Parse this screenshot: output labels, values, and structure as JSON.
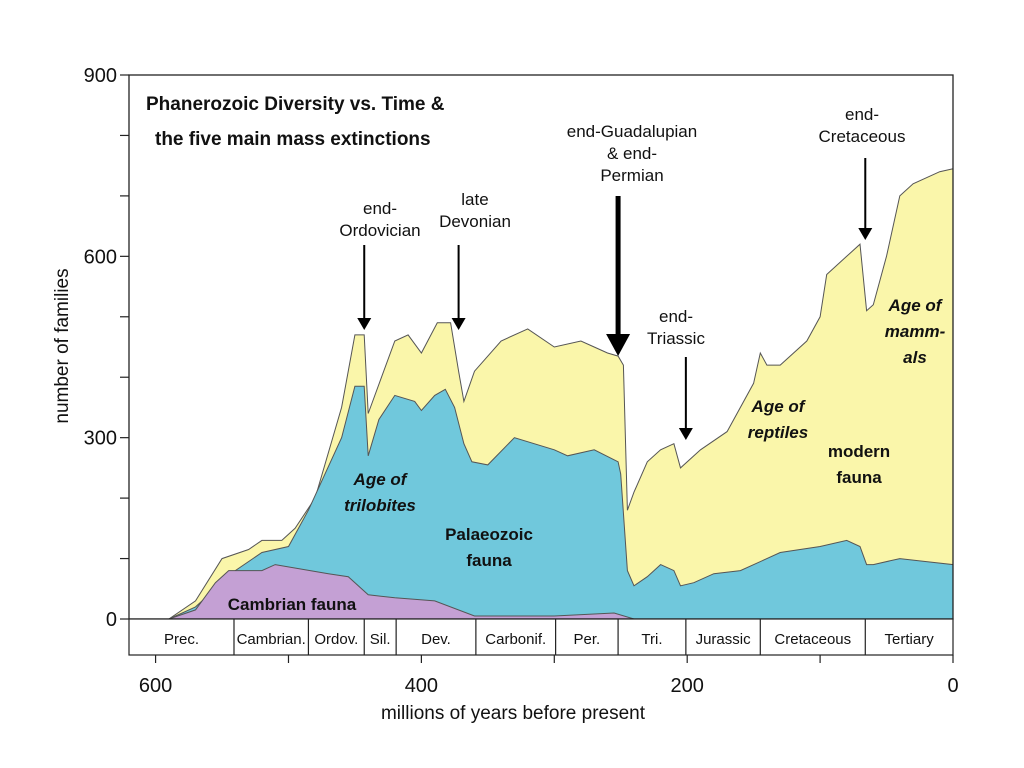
{
  "chart_data": {
    "type": "area",
    "title": "Phanerozoic Diversity vs. Time &",
    "title_line2": "the five main mass extinctions",
    "xlabel": "millions of years before present",
    "ylabel": "number of families",
    "xlim": [
      620,
      0
    ],
    "ylim": [
      0,
      900
    ],
    "x_ticks": [
      600,
      400,
      200,
      0
    ],
    "y_ticks": [
      0,
      300,
      600,
      900
    ],
    "series": [
      {
        "name": "Cambrian fauna",
        "color": "#c4a0d4",
        "points": [
          [
            590,
            0
          ],
          [
            570,
            15
          ],
          [
            555,
            60
          ],
          [
            545,
            80
          ],
          [
            520,
            80
          ],
          [
            510,
            90
          ],
          [
            470,
            75
          ],
          [
            455,
            70
          ],
          [
            440,
            40
          ],
          [
            420,
            35
          ],
          [
            390,
            30
          ],
          [
            360,
            5
          ],
          [
            300,
            5
          ],
          [
            255,
            10
          ],
          [
            240,
            0
          ],
          [
            0,
            0
          ]
        ]
      },
      {
        "name": "Palaeozoic fauna",
        "color": "#70c8dc",
        "points": [
          [
            590,
            0
          ],
          [
            570,
            20
          ],
          [
            540,
            80
          ],
          [
            520,
            110
          ],
          [
            500,
            120
          ],
          [
            485,
            180
          ],
          [
            460,
            300
          ],
          [
            450,
            385
          ],
          [
            443,
            385
          ],
          [
            440,
            270
          ],
          [
            432,
            330
          ],
          [
            420,
            370
          ],
          [
            405,
            360
          ],
          [
            400,
            345
          ],
          [
            390,
            370
          ],
          [
            382,
            380
          ],
          [
            375,
            350
          ],
          [
            368,
            290
          ],
          [
            362,
            260
          ],
          [
            350,
            255
          ],
          [
            330,
            300
          ],
          [
            300,
            280
          ],
          [
            290,
            270
          ],
          [
            270,
            280
          ],
          [
            252,
            260
          ],
          [
            250,
            240
          ],
          [
            245,
            80
          ],
          [
            240,
            55
          ],
          [
            230,
            70
          ],
          [
            220,
            90
          ],
          [
            210,
            80
          ],
          [
            205,
            55
          ],
          [
            195,
            60
          ],
          [
            180,
            75
          ],
          [
            160,
            80
          ],
          [
            140,
            100
          ],
          [
            130,
            110
          ],
          [
            100,
            120
          ],
          [
            80,
            130
          ],
          [
            70,
            120
          ],
          [
            65,
            90
          ],
          [
            60,
            90
          ],
          [
            40,
            100
          ],
          [
            20,
            95
          ],
          [
            0,
            90
          ]
        ]
      },
      {
        "name": "modern fauna",
        "color": "#faf6aa",
        "points": [
          [
            590,
            0
          ],
          [
            570,
            30
          ],
          [
            550,
            100
          ],
          [
            530,
            115
          ],
          [
            520,
            130
          ],
          [
            505,
            130
          ],
          [
            495,
            150
          ],
          [
            480,
            200
          ],
          [
            460,
            350
          ],
          [
            450,
            470
          ],
          [
            443,
            470
          ],
          [
            440,
            340
          ],
          [
            430,
            400
          ],
          [
            420,
            460
          ],
          [
            410,
            470
          ],
          [
            400,
            440
          ],
          [
            388,
            490
          ],
          [
            378,
            490
          ],
          [
            372,
            410
          ],
          [
            368,
            360
          ],
          [
            360,
            410
          ],
          [
            340,
            460
          ],
          [
            320,
            480
          ],
          [
            300,
            450
          ],
          [
            280,
            460
          ],
          [
            270,
            450
          ],
          [
            260,
            440
          ],
          [
            252,
            435
          ],
          [
            248,
            420
          ],
          [
            245,
            180
          ],
          [
            240,
            210
          ],
          [
            230,
            260
          ],
          [
            220,
            280
          ],
          [
            210,
            290
          ],
          [
            205,
            250
          ],
          [
            190,
            280
          ],
          [
            170,
            310
          ],
          [
            150,
            390
          ],
          [
            145,
            440
          ],
          [
            140,
            420
          ],
          [
            130,
            420
          ],
          [
            110,
            460
          ],
          [
            100,
            500
          ],
          [
            95,
            570
          ],
          [
            80,
            600
          ],
          [
            70,
            620
          ],
          [
            65,
            510
          ],
          [
            60,
            520
          ],
          [
            50,
            600
          ],
          [
            40,
            700
          ],
          [
            30,
            720
          ],
          [
            10,
            740
          ],
          [
            0,
            745
          ]
        ]
      }
    ],
    "extinctions": [
      {
        "label_lines": [
          "end-",
          "Ordovician"
        ],
        "x": 443
      },
      {
        "label_lines": [
          "late",
          "Devonian"
        ],
        "x": 372
      },
      {
        "label_lines": [
          "end-Guadalupian",
          "& end-",
          "Permian"
        ],
        "x": 252
      },
      {
        "label_lines": [
          "end-",
          "Triassic"
        ],
        "x": 201
      },
      {
        "label_lines": [
          "end-",
          "Cretaceous"
        ],
        "x": 66
      }
    ],
    "region_labels": [
      {
        "lines": [
          "Cambrian fauna"
        ],
        "style": "bold"
      },
      {
        "lines": [
          "Age of",
          "trilobites"
        ],
        "style": "italic"
      },
      {
        "lines": [
          "Palaeozoic",
          "fauna"
        ],
        "style": "bold"
      },
      {
        "lines": [
          "Age of",
          "reptiles"
        ],
        "style": "italic"
      },
      {
        "lines": [
          "modern",
          "fauna"
        ],
        "style": "bold"
      },
      {
        "lines": [
          "Age of",
          "mamm-",
          "als"
        ],
        "style": "italic"
      }
    ],
    "periods": [
      {
        "label": "Prec.",
        "start": 620,
        "end": 541
      },
      {
        "label": "Cambrian.",
        "start": 541,
        "end": 485
      },
      {
        "label": "Ordov.",
        "start": 485,
        "end": 443
      },
      {
        "label": "Sil.",
        "start": 443,
        "end": 419
      },
      {
        "label": "Dev.",
        "start": 419,
        "end": 359
      },
      {
        "label": "Carbonif.",
        "start": 359,
        "end": 299
      },
      {
        "label": "Per.",
        "start": 299,
        "end": 252
      },
      {
        "label": "Tri.",
        "start": 252,
        "end": 201
      },
      {
        "label": "Jurassic",
        "start": 201,
        "end": 145
      },
      {
        "label": "Cretaceous",
        "start": 145,
        "end": 66
      },
      {
        "label": "Tertiary",
        "start": 66,
        "end": 0
      }
    ]
  }
}
